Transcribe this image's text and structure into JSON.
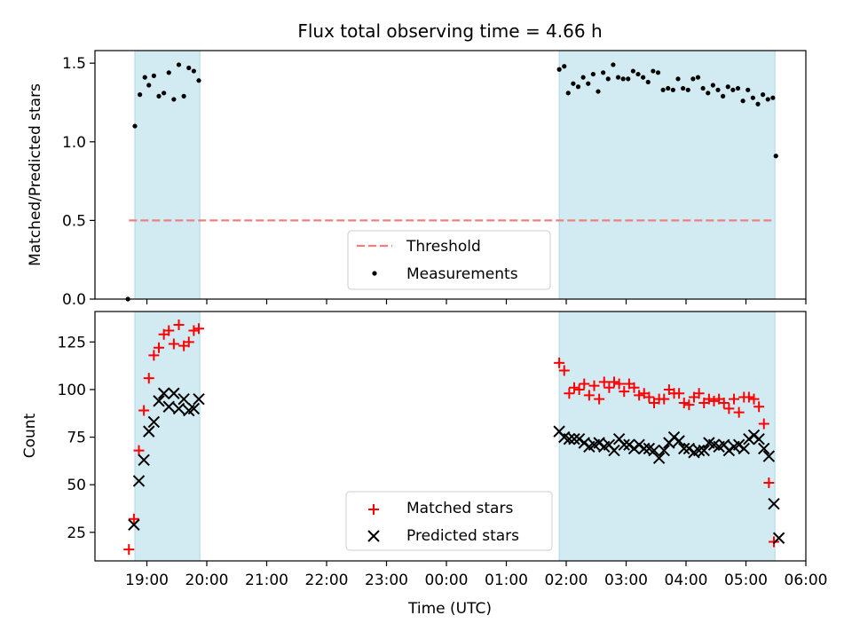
{
  "title": "Flux total observing time = 4.66 h",
  "chart_data": [
    {
      "type": "scatter",
      "panel": "top",
      "ylabel": "Matched/Predicted stars",
      "ylim": [
        0,
        1.58
      ],
      "yticks": [
        0.0,
        0.5,
        1.0,
        1.5
      ],
      "ytick_labels": [
        "0.0",
        "0.5",
        "1.0",
        "1.5"
      ],
      "shaded_intervals": [
        [
          "18:48",
          "19:53"
        ],
        [
          "01:53",
          "05:29"
        ]
      ],
      "threshold": {
        "name": "Threshold",
        "value": 0.5,
        "x_range": [
          "18:42",
          "05:29"
        ],
        "color": "#f08080",
        "style": "dashed"
      },
      "series": [
        {
          "name": "Measurements",
          "marker": "dot",
          "color": "#000000",
          "points": [
            [
              "18:41",
              0.0
            ],
            [
              "18:48",
              1.1
            ],
            [
              "18:53",
              1.3
            ],
            [
              "18:58",
              1.41
            ],
            [
              "19:02",
              1.36
            ],
            [
              "19:07",
              1.42
            ],
            [
              "19:12",
              1.29
            ],
            [
              "19:17",
              1.31
            ],
            [
              "19:22",
              1.44
            ],
            [
              "19:27",
              1.27
            ],
            [
              "19:32",
              1.49
            ],
            [
              "19:37",
              1.29
            ],
            [
              "19:42",
              1.47
            ],
            [
              "19:47",
              1.45
            ],
            [
              "19:52",
              1.39
            ],
            [
              "01:53",
              1.46
            ],
            [
              "01:58",
              1.48
            ],
            [
              "02:02",
              1.31
            ],
            [
              "02:07",
              1.37
            ],
            [
              "02:12",
              1.35
            ],
            [
              "02:17",
              1.41
            ],
            [
              "02:22",
              1.37
            ],
            [
              "02:27",
              1.43
            ],
            [
              "02:32",
              1.32
            ],
            [
              "02:37",
              1.44
            ],
            [
              "02:42",
              1.4
            ],
            [
              "02:47",
              1.49
            ],
            [
              "02:52",
              1.41
            ],
            [
              "02:57",
              1.4
            ],
            [
              "03:02",
              1.4
            ],
            [
              "03:07",
              1.45
            ],
            [
              "03:12",
              1.43
            ],
            [
              "03:17",
              1.41
            ],
            [
              "03:22",
              1.38
            ],
            [
              "03:27",
              1.45
            ],
            [
              "03:32",
              1.44
            ],
            [
              "03:37",
              1.33
            ],
            [
              "03:42",
              1.34
            ],
            [
              "03:47",
              1.33
            ],
            [
              "03:52",
              1.4
            ],
            [
              "03:57",
              1.34
            ],
            [
              "04:02",
              1.33
            ],
            [
              "04:07",
              1.4
            ],
            [
              "04:12",
              1.41
            ],
            [
              "04:17",
              1.34
            ],
            [
              "04:22",
              1.31
            ],
            [
              "04:27",
              1.36
            ],
            [
              "04:32",
              1.33
            ],
            [
              "04:37",
              1.29
            ],
            [
              "04:42",
              1.35
            ],
            [
              "04:47",
              1.33
            ],
            [
              "04:52",
              1.34
            ],
            [
              "04:57",
              1.26
            ],
            [
              "05:02",
              1.33
            ],
            [
              "05:07",
              1.28
            ],
            [
              "05:12",
              1.24
            ],
            [
              "05:17",
              1.3
            ],
            [
              "05:22",
              1.27
            ],
            [
              "05:27",
              1.28
            ],
            [
              "05:30",
              0.91
            ]
          ]
        }
      ]
    },
    {
      "type": "scatter",
      "panel": "bottom",
      "xlabel": "Time (UTC)",
      "ylabel": "Count",
      "ylim": [
        10,
        141
      ],
      "yticks": [
        25,
        50,
        75,
        100,
        125
      ],
      "ytick_labels": [
        "25",
        "50",
        "75",
        "100",
        "125"
      ],
      "xlim": [
        "18:08",
        "06:00"
      ],
      "xticks": [
        "19:00",
        "20:00",
        "21:00",
        "22:00",
        "23:00",
        "00:00",
        "01:00",
        "02:00",
        "03:00",
        "04:00",
        "05:00",
        "06:00"
      ],
      "xtick_labels": [
        "19:00",
        "20:00",
        "21:00",
        "22:00",
        "23:00",
        "00:00",
        "01:00",
        "02:00",
        "03:00",
        "04:00",
        "05:00",
        "06:00"
      ],
      "shaded_intervals": [
        [
          "18:48",
          "19:53"
        ],
        [
          "01:53",
          "05:29"
        ]
      ],
      "series": [
        {
          "name": "Matched stars",
          "marker": "plus",
          "color": "#ff0000",
          "points": [
            [
              "18:42",
              16
            ],
            [
              "18:47",
              32
            ],
            [
              "18:52",
              68
            ],
            [
              "18:57",
              89
            ],
            [
              "19:02",
              106
            ],
            [
              "19:07",
              118
            ],
            [
              "19:12",
              122
            ],
            [
              "19:17",
              129
            ],
            [
              "19:22",
              131
            ],
            [
              "19:27",
              124
            ],
            [
              "19:32",
              134
            ],
            [
              "19:37",
              123
            ],
            [
              "19:42",
              125
            ],
            [
              "19:47",
              131
            ],
            [
              "19:52",
              132
            ],
            [
              "01:53",
              114
            ],
            [
              "01:58",
              110
            ],
            [
              "02:03",
              98
            ],
            [
              "02:08",
              101
            ],
            [
              "02:13",
              100
            ],
            [
              "02:18",
              103
            ],
            [
              "02:23",
              97
            ],
            [
              "02:28",
              102
            ],
            [
              "02:33",
              95
            ],
            [
              "02:38",
              104
            ],
            [
              "02:43",
              101
            ],
            [
              "02:48",
              104
            ],
            [
              "02:53",
              103
            ],
            [
              "02:58",
              99
            ],
            [
              "03:03",
              103
            ],
            [
              "03:08",
              101
            ],
            [
              "03:13",
              97
            ],
            [
              "03:18",
              98
            ],
            [
              "03:23",
              96
            ],
            [
              "03:28",
              93
            ],
            [
              "03:33",
              95
            ],
            [
              "03:38",
              95
            ],
            [
              "03:43",
              100
            ],
            [
              "03:48",
              98
            ],
            [
              "03:53",
              98
            ],
            [
              "03:58",
              93
            ],
            [
              "04:03",
              92
            ],
            [
              "04:08",
              96
            ],
            [
              "04:13",
              98
            ],
            [
              "04:18",
              93
            ],
            [
              "04:23",
              95
            ],
            [
              "04:28",
              94
            ],
            [
              "04:33",
              95
            ],
            [
              "04:38",
              93
            ],
            [
              "04:43",
              90
            ],
            [
              "04:48",
              95
            ],
            [
              "04:53",
              88
            ],
            [
              "04:58",
              96
            ],
            [
              "05:03",
              96
            ],
            [
              "05:08",
              95
            ],
            [
              "05:13",
              91
            ],
            [
              "05:18",
              82
            ],
            [
              "05:23",
              51
            ],
            [
              "05:28",
              20
            ]
          ]
        },
        {
          "name": "Predicted stars",
          "marker": "x",
          "color": "#000000",
          "points": [
            [
              "18:47",
              29
            ],
            [
              "18:52",
              52
            ],
            [
              "18:57",
              63
            ],
            [
              "19:02",
              78
            ],
            [
              "19:07",
              83
            ],
            [
              "19:12",
              94
            ],
            [
              "19:17",
              98
            ],
            [
              "19:22",
              91
            ],
            [
              "19:27",
              98
            ],
            [
              "19:32",
              90
            ],
            [
              "19:37",
              95
            ],
            [
              "19:42",
              89
            ],
            [
              "19:47",
              90
            ],
            [
              "19:52",
              95
            ],
            [
              "01:53",
              78
            ],
            [
              "01:58",
              75
            ],
            [
              "02:03",
              74
            ],
            [
              "02:08",
              74
            ],
            [
              "02:13",
              74
            ],
            [
              "02:18",
              72
            ],
            [
              "02:23",
              70
            ],
            [
              "02:28",
              71
            ],
            [
              "02:33",
              72
            ],
            [
              "02:38",
              70
            ],
            [
              "02:43",
              71
            ],
            [
              "02:48",
              68
            ],
            [
              "02:53",
              74
            ],
            [
              "02:58",
              71
            ],
            [
              "03:03",
              71
            ],
            [
              "03:08",
              69
            ],
            [
              "03:13",
              71
            ],
            [
              "03:18",
              69
            ],
            [
              "03:23",
              69
            ],
            [
              "03:28",
              68
            ],
            [
              "03:33",
              64
            ],
            [
              "03:38",
              68
            ],
            [
              "03:43",
              72
            ],
            [
              "03:48",
              75
            ],
            [
              "03:53",
              73
            ],
            [
              "03:58",
              69
            ],
            [
              "04:03",
              69
            ],
            [
              "04:08",
              67
            ],
            [
              "04:13",
              68
            ],
            [
              "04:18",
              68
            ],
            [
              "04:23",
              72
            ],
            [
              "04:28",
              71
            ],
            [
              "04:33",
              70
            ],
            [
              "04:38",
              71
            ],
            [
              "04:43",
              68
            ],
            [
              "04:48",
              70
            ],
            [
              "04:53",
              71
            ],
            [
              "04:58",
              69
            ],
            [
              "05:03",
              74
            ],
            [
              "05:08",
              76
            ],
            [
              "05:13",
              74
            ],
            [
              "05:18",
              69
            ],
            [
              "05:23",
              65
            ],
            [
              "05:28",
              40
            ],
            [
              "05:33",
              22
            ]
          ]
        }
      ]
    }
  ],
  "legend_top": {
    "placement": "lower-center",
    "entries": [
      "Threshold",
      "Measurements"
    ]
  },
  "legend_bottom": {
    "placement": "lower-center",
    "entries": [
      "Matched stars",
      "Predicted stars"
    ]
  },
  "colors": {
    "shade": "#add8e6",
    "threshold": "#f08080",
    "matched": "#ff0000",
    "predicted": "#000000",
    "measurements": "#000000"
  }
}
